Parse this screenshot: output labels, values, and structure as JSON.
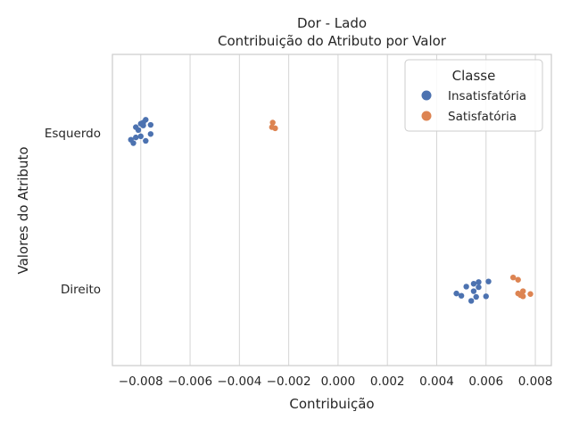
{
  "chart_data": {
    "type": "strip",
    "title": "Dor - Lado",
    "subtitle": "Contribuição do Atributo por Valor",
    "xlabel": "Contribuição",
    "ylabel": "Valores do Atributo",
    "xlim": [
      -0.00915,
      0.00865
    ],
    "xticks": [
      -0.008,
      -0.006,
      -0.004,
      -0.002,
      0.0,
      0.002,
      0.004,
      0.006,
      0.008
    ],
    "xtick_labels": [
      "−0.008",
      "−0.006",
      "−0.004",
      "−0.002",
      "0.000",
      "0.002",
      "0.004",
      "0.006",
      "0.008"
    ],
    "categories": [
      "Esquerdo",
      "Direito"
    ],
    "grid": true,
    "legend": {
      "title": "Classe",
      "position": "top-right",
      "entries": [
        "Insatisfatória",
        "Satisfatória"
      ]
    },
    "colors": {
      "Insatisfatória": "#4c72b0",
      "Satisfatória": "#dd8452"
    },
    "series": [
      {
        "name": "Insatisfatória",
        "points": [
          {
            "category": "Esquerdo",
            "x": -0.0078,
            "jitter": -0.23
          },
          {
            "category": "Esquerdo",
            "x": -0.0079,
            "jitter": -0.18
          },
          {
            "category": "Esquerdo",
            "x": -0.008,
            "jitter": -0.16
          },
          {
            "category": "Esquerdo",
            "x": -0.0076,
            "jitter": -0.14
          },
          {
            "category": "Esquerdo",
            "x": -0.0079,
            "jitter": -0.13
          },
          {
            "category": "Esquerdo",
            "x": -0.0082,
            "jitter": -0.1
          },
          {
            "category": "Esquerdo",
            "x": -0.0081,
            "jitter": -0.05
          },
          {
            "category": "Esquerdo",
            "x": -0.0076,
            "jitter": 0.02
          },
          {
            "category": "Esquerdo",
            "x": -0.008,
            "jitter": 0.06
          },
          {
            "category": "Esquerdo",
            "x": -0.0082,
            "jitter": 0.08
          },
          {
            "category": "Esquerdo",
            "x": -0.0084,
            "jitter": 0.12
          },
          {
            "category": "Esquerdo",
            "x": -0.0078,
            "jitter": 0.14
          },
          {
            "category": "Esquerdo",
            "x": -0.0083,
            "jitter": 0.18
          },
          {
            "category": "Direito",
            "x": 0.0061,
            "jitter": -0.13
          },
          {
            "category": "Direito",
            "x": 0.0057,
            "jitter": -0.12
          },
          {
            "category": "Direito",
            "x": 0.0055,
            "jitter": -0.09
          },
          {
            "category": "Direito",
            "x": 0.0052,
            "jitter": -0.04
          },
          {
            "category": "Direito",
            "x": 0.0057,
            "jitter": -0.03
          },
          {
            "category": "Direito",
            "x": 0.0055,
            "jitter": 0.04
          },
          {
            "category": "Direito",
            "x": 0.0048,
            "jitter": 0.08
          },
          {
            "category": "Direito",
            "x": 0.005,
            "jitter": 0.12
          },
          {
            "category": "Direito",
            "x": 0.006,
            "jitter": 0.13
          },
          {
            "category": "Direito",
            "x": 0.0056,
            "jitter": 0.14
          },
          {
            "category": "Direito",
            "x": 0.0054,
            "jitter": 0.21
          }
        ]
      },
      {
        "name": "Satisfatória",
        "points": [
          {
            "category": "Esquerdo",
            "x": -0.00265,
            "jitter": -0.18
          },
          {
            "category": "Esquerdo",
            "x": -0.00268,
            "jitter": -0.1
          },
          {
            "category": "Esquerdo",
            "x": -0.00255,
            "jitter": -0.08
          },
          {
            "category": "Direito",
            "x": 0.0071,
            "jitter": -0.2
          },
          {
            "category": "Direito",
            "x": 0.0073,
            "jitter": -0.16
          },
          {
            "category": "Direito",
            "x": 0.0075,
            "jitter": 0.04
          },
          {
            "category": "Direito",
            "x": 0.0073,
            "jitter": 0.08
          },
          {
            "category": "Direito",
            "x": 0.0078,
            "jitter": 0.09
          },
          {
            "category": "Direito",
            "x": 0.0074,
            "jitter": 0.11
          },
          {
            "category": "Direito",
            "x": 0.0075,
            "jitter": 0.13
          }
        ]
      }
    ]
  }
}
